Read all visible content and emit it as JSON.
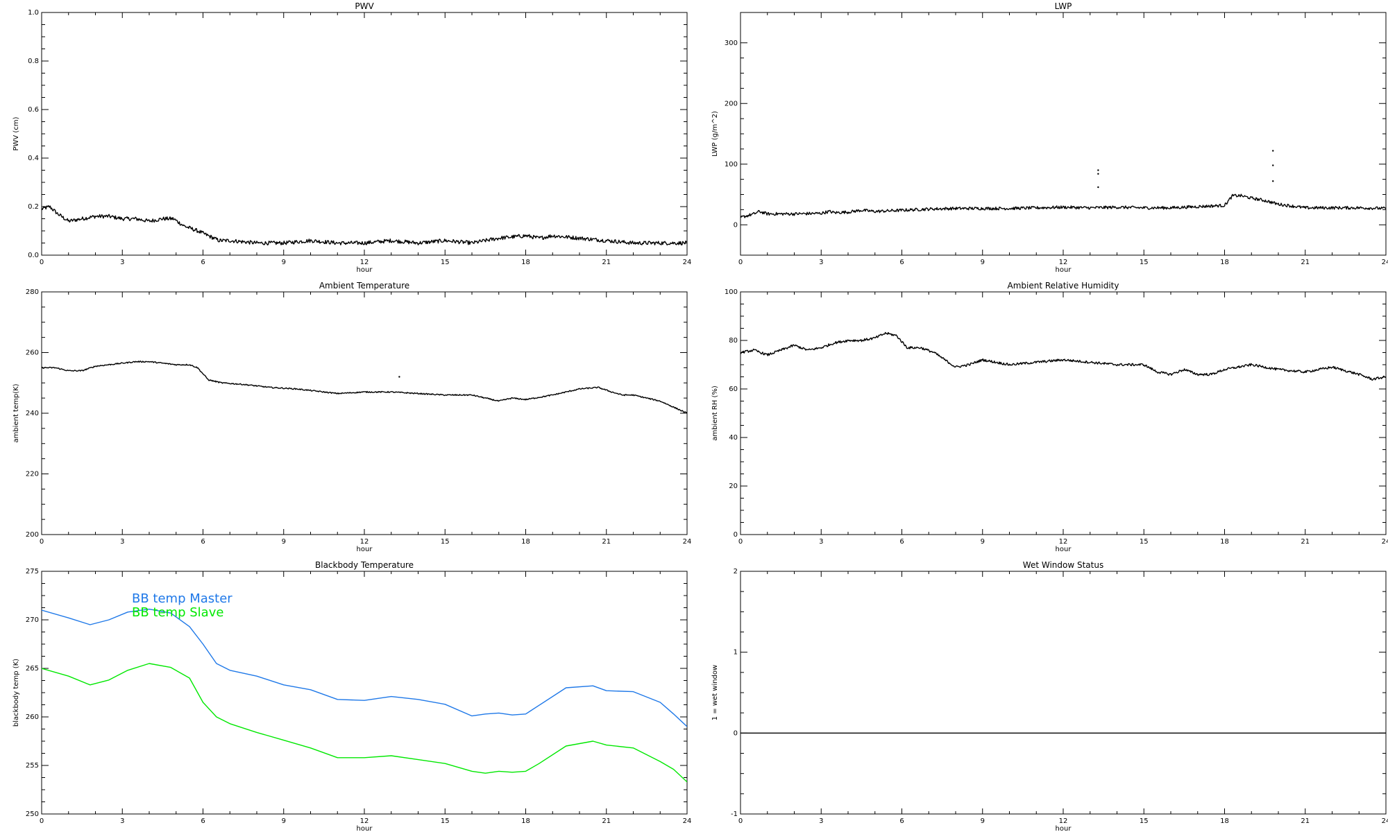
{
  "chart_data": [
    {
      "id": "pwv",
      "type": "line",
      "title": "PWV",
      "xlabel": "hour",
      "ylabel": "PWV (cm)",
      "xlim": [
        0,
        24
      ],
      "ylim": [
        0,
        1.0
      ],
      "xticks": [
        0,
        3,
        6,
        9,
        12,
        15,
        18,
        21,
        24
      ],
      "yticks": [
        0.0,
        0.2,
        0.4,
        0.6,
        0.8,
        1.0
      ],
      "ytick_labels": [
        "0.0",
        "0.2",
        "0.4",
        "0.6",
        "0.8",
        "1.0"
      ],
      "series": [
        {
          "color": "#000000",
          "x": [
            0,
            0.3,
            0.6,
            1.0,
            1.5,
            2.0,
            2.5,
            3.0,
            3.5,
            4.0,
            4.5,
            4.9,
            5.3,
            5.8,
            6.2,
            6.6,
            7.0,
            8.0,
            9.0,
            10.0,
            11.0,
            12.0,
            13.0,
            14.0,
            15.0,
            16.0,
            17.0,
            18.0,
            18.5,
            19.0,
            20.0,
            21.0,
            22.0,
            23.0,
            24.0
          ],
          "y": [
            0.19,
            0.2,
            0.17,
            0.14,
            0.15,
            0.16,
            0.16,
            0.15,
            0.15,
            0.14,
            0.15,
            0.15,
            0.12,
            0.1,
            0.08,
            0.06,
            0.06,
            0.05,
            0.05,
            0.06,
            0.05,
            0.05,
            0.06,
            0.05,
            0.06,
            0.05,
            0.07,
            0.08,
            0.07,
            0.08,
            0.07,
            0.06,
            0.05,
            0.05,
            0.05
          ],
          "noise": 0.008
        }
      ]
    },
    {
      "id": "lwp",
      "type": "line",
      "title": "LWP",
      "xlabel": "hour",
      "ylabel": "LWP (g/m^2)",
      "xlim": [
        0,
        24
      ],
      "ylim": [
        -50,
        350
      ],
      "xticks": [
        0,
        3,
        6,
        9,
        12,
        15,
        18,
        21,
        24
      ],
      "yticks": [
        0,
        100,
        200,
        300
      ],
      "ytick_labels": [
        "0",
        "100",
        "200",
        "300"
      ],
      "series": [
        {
          "color": "#000000",
          "x": [
            0,
            0.5,
            0.7,
            1.0,
            2.0,
            3.0,
            3.3,
            3.5,
            4.0,
            4.5,
            5.0,
            6.0,
            7.0,
            8.0,
            9.0,
            10.0,
            11.0,
            12.0,
            13.0,
            14.0,
            15.0,
            16.0,
            17.0,
            18.0,
            18.3,
            18.6,
            19.0,
            19.5,
            20.0,
            21.0,
            22.0,
            23.0,
            24.0
          ],
          "y": [
            12,
            18,
            22,
            18,
            18,
            19,
            22,
            20,
            21,
            24,
            22,
            24,
            26,
            27,
            27,
            27,
            28,
            29,
            28,
            29,
            28,
            28,
            30,
            32,
            48,
            48,
            44,
            40,
            34,
            28,
            28,
            28,
            27
          ],
          "noise": 2.5
        }
      ],
      "scatter_points": [
        {
          "x": 13.3,
          "y": 90
        },
        {
          "x": 13.3,
          "y": 84
        },
        {
          "x": 13.3,
          "y": 62
        },
        {
          "x": 19.8,
          "y": 122
        },
        {
          "x": 19.8,
          "y": 98
        },
        {
          "x": 19.8,
          "y": 72
        }
      ]
    },
    {
      "id": "ambient-temp",
      "type": "line",
      "title": "Ambient Temperature",
      "xlabel": "hour",
      "ylabel": "ambient temp(K)",
      "xlim": [
        0,
        24
      ],
      "ylim": [
        200,
        280
      ],
      "xticks": [
        0,
        3,
        6,
        9,
        12,
        15,
        18,
        21,
        24
      ],
      "yticks": [
        200,
        220,
        240,
        260,
        280
      ],
      "ytick_labels": [
        "200",
        "220",
        "240",
        "260",
        "280"
      ],
      "series": [
        {
          "color": "#000000",
          "x": [
            0,
            0.5,
            1.0,
            1.5,
            2.0,
            2.5,
            3.0,
            3.5,
            4.0,
            4.5,
            5.0,
            5.5,
            5.8,
            6.2,
            6.7,
            7.5,
            8.5,
            9.5,
            10.5,
            11.0,
            12.0,
            13.0,
            14.0,
            15.0,
            16.0,
            16.5,
            17.0,
            17.5,
            18.0,
            19.0,
            20.0,
            20.7,
            21.2,
            21.6,
            22.0,
            23.0,
            24.0
          ],
          "y": [
            255,
            255,
            254,
            254,
            255.5,
            256,
            256.5,
            257,
            257,
            256.5,
            256,
            256,
            255,
            251,
            250,
            249.5,
            248.5,
            248,
            247,
            246.5,
            247,
            247,
            246.5,
            246,
            246,
            245,
            244,
            245,
            244.5,
            246,
            248,
            248.5,
            247,
            246,
            246,
            244,
            240
          ],
          "noise": 0.2
        }
      ],
      "scatter_points": [
        {
          "x": 13.3,
          "y": 252
        }
      ]
    },
    {
      "id": "ambient-rh",
      "type": "line",
      "title": "Ambient Relative Humidity",
      "xlabel": "hour",
      "ylabel": "ambient RH (%)",
      "xlim": [
        0,
        24
      ],
      "ylim": [
        0,
        100
      ],
      "xticks": [
        0,
        3,
        6,
        9,
        12,
        15,
        18,
        21,
        24
      ],
      "yticks": [
        0,
        20,
        40,
        60,
        80,
        100
      ],
      "ytick_labels": [
        "0",
        "20",
        "40",
        "60",
        "80",
        "100"
      ],
      "series": [
        {
          "color": "#000000",
          "x": [
            0,
            0.5,
            1.0,
            1.5,
            2.0,
            2.5,
            3.0,
            3.5,
            4.0,
            4.5,
            5.0,
            5.4,
            5.8,
            6.2,
            6.7,
            7.2,
            7.6,
            8.0,
            8.5,
            9.0,
            10.0,
            11.0,
            12.0,
            13.0,
            14.0,
            15.0,
            15.5,
            16.0,
            16.5,
            17.0,
            17.5,
            18.0,
            19.0,
            20.0,
            21.0,
            22.0,
            23.0,
            23.5,
            24.0
          ],
          "y": [
            75,
            76,
            74,
            76,
            78,
            76,
            77,
            79,
            80,
            80,
            81,
            83,
            82,
            77,
            77,
            75,
            72,
            69,
            70,
            72,
            70,
            71,
            72,
            71,
            70,
            70,
            67,
            66,
            68,
            66,
            66,
            68,
            70,
            68,
            67,
            69,
            66,
            64,
            65
          ],
          "noise": 0.5
        }
      ]
    },
    {
      "id": "blackbody-temp",
      "type": "line",
      "title": "Blackbody Temperature",
      "xlabel": "hour",
      "ylabel": "blackbody temp (K)",
      "xlim": [
        0,
        24
      ],
      "ylim": [
        250,
        275
      ],
      "xticks": [
        0,
        3,
        6,
        9,
        12,
        15,
        18,
        21,
        24
      ],
      "yticks": [
        250,
        255,
        260,
        265,
        270,
        275
      ],
      "ytick_labels": [
        "250",
        "255",
        "260",
        "265",
        "270",
        "275"
      ],
      "legend": [
        "BB temp Master",
        "BB temp Slave"
      ],
      "series": [
        {
          "name": "BB temp Master",
          "color": "#1e78e8",
          "x": [
            0,
            1.0,
            1.8,
            2.5,
            3.2,
            4.0,
            4.8,
            5.5,
            6.0,
            6.5,
            7.0,
            8.0,
            9.0,
            10.0,
            11.0,
            12.0,
            13.0,
            14.0,
            15.0,
            16.0,
            16.5,
            17.0,
            17.5,
            18.0,
            18.5,
            19.5,
            20.5,
            21.0,
            22.0,
            23.0,
            23.5,
            24.0
          ],
          "y": [
            271,
            270.2,
            269.5,
            270,
            270.8,
            271.1,
            270.7,
            269.3,
            267.5,
            265.5,
            264.8,
            264.2,
            263.3,
            262.8,
            261.8,
            261.7,
            262.1,
            261.8,
            261.3,
            260.1,
            260.3,
            260.4,
            260.2,
            260.3,
            261.2,
            263.0,
            263.2,
            262.7,
            262.6,
            261.5,
            260.3,
            259
          ],
          "noise": 0
        },
        {
          "name": "BB temp Slave",
          "color": "#00e800",
          "x": [
            0,
            1.0,
            1.8,
            2.5,
            3.2,
            4.0,
            4.8,
            5.5,
            6.0,
            6.5,
            7.0,
            8.0,
            9.0,
            10.0,
            11.0,
            12.0,
            13.0,
            14.0,
            15.0,
            16.0,
            16.5,
            17.0,
            17.5,
            18.0,
            18.5,
            19.5,
            20.5,
            21.0,
            22.0,
            23.0,
            23.5,
            24.0
          ],
          "y": [
            265,
            264.2,
            263.3,
            263.8,
            264.8,
            265.5,
            265.1,
            264.0,
            261.5,
            260.0,
            259.3,
            258.4,
            257.6,
            256.8,
            255.8,
            255.8,
            256.0,
            255.6,
            255.2,
            254.4,
            254.2,
            254.4,
            254.3,
            254.4,
            255.2,
            257.0,
            257.5,
            257.1,
            256.8,
            255.4,
            254.6,
            253.3
          ],
          "noise": 0
        }
      ]
    },
    {
      "id": "wet-window",
      "type": "line",
      "title": "Wet Window Status",
      "xlabel": "hour",
      "ylabel": "1 = wet window",
      "xlim": [
        0,
        24
      ],
      "ylim": [
        -1,
        2
      ],
      "xticks": [
        0,
        3,
        6,
        9,
        12,
        15,
        18,
        21,
        24
      ],
      "yticks": [
        -1,
        0,
        1,
        2
      ],
      "ytick_labels": [
        "-1",
        "0",
        "1",
        "2"
      ],
      "series": [
        {
          "color": "#000000",
          "x": [
            0,
            24
          ],
          "y": [
            0,
            0
          ],
          "noise": 0
        }
      ]
    }
  ]
}
